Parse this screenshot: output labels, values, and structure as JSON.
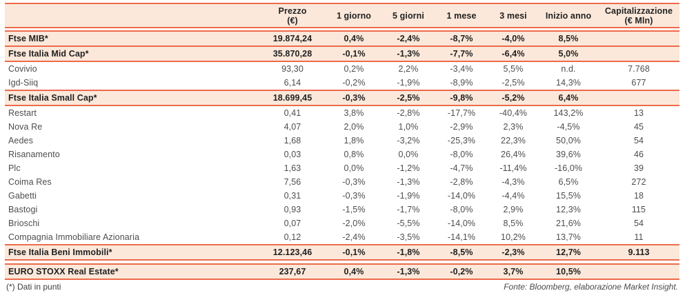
{
  "colors": {
    "accent_line": "#ed6a4b",
    "highlight_row_bg": "#fbe8da",
    "index_text": "#1f1f1f",
    "stock_text": "#4d4d4d"
  },
  "table": {
    "columns": [
      {
        "key": "name",
        "label_lines": []
      },
      {
        "key": "prezzo",
        "label_lines": [
          "Prezzo",
          "(€)"
        ]
      },
      {
        "key": "g1",
        "label_lines": [
          "1 giorno"
        ]
      },
      {
        "key": "g5",
        "label_lines": [
          "5 giorni"
        ]
      },
      {
        "key": "m1",
        "label_lines": [
          "1 mese"
        ]
      },
      {
        "key": "m3",
        "label_lines": [
          "3 mesi"
        ]
      },
      {
        "key": "ytd",
        "label_lines": [
          "Inizio anno"
        ]
      },
      {
        "key": "cap",
        "label_lines": [
          "Capitalizzazione",
          "(€ Mln)"
        ]
      }
    ],
    "rows": [
      {
        "type": "index",
        "name": "Ftse MIB*",
        "prezzo": "19.874,24",
        "g1": "0,4%",
        "g5": "-2,4%",
        "m1": "-8,7%",
        "m3": "-4,0%",
        "ytd": "8,5%",
        "cap": ""
      },
      {
        "type": "index",
        "name": "Ftse Italia Mid Cap*",
        "prezzo": "35.870,28",
        "g1": "-0,1%",
        "g5": "-1,3%",
        "m1": "-7,7%",
        "m3": "-6,4%",
        "ytd": "5,0%",
        "cap": ""
      },
      {
        "type": "stock",
        "name": "Covivio",
        "prezzo": "93,30",
        "g1": "0,2%",
        "g5": "2,2%",
        "m1": "-3,4%",
        "m3": "5,5%",
        "ytd": "n.d.",
        "cap": "7.768"
      },
      {
        "type": "stock",
        "name": "Igd-Siiq",
        "prezzo": "6,14",
        "g1": "-0,2%",
        "g5": "-1,9%",
        "m1": "-8,9%",
        "m3": "-2,5%",
        "ytd": "14,3%",
        "cap": "677"
      },
      {
        "type": "index",
        "name": "Ftse Italia Small Cap*",
        "prezzo": "18.699,45",
        "g1": "-0,3%",
        "g5": "-2,5%",
        "m1": "-9,8%",
        "m3": "-5,2%",
        "ytd": "6,4%",
        "cap": ""
      },
      {
        "type": "stock",
        "name": "Restart",
        "prezzo": "0,41",
        "g1": "3,8%",
        "g5": "-2,8%",
        "m1": "-17,7%",
        "m3": "-40,4%",
        "ytd": "143,2%",
        "cap": "13"
      },
      {
        "type": "stock",
        "name": "Nova Re",
        "prezzo": "4,07",
        "g1": "2,0%",
        "g5": "1,0%",
        "m1": "-2,9%",
        "m3": "2,3%",
        "ytd": "-4,5%",
        "cap": "45"
      },
      {
        "type": "stock",
        "name": "Aedes",
        "prezzo": "1,68",
        "g1": "1,8%",
        "g5": "-3,2%",
        "m1": "-25,3%",
        "m3": "22,3%",
        "ytd": "50,0%",
        "cap": "54"
      },
      {
        "type": "stock",
        "name": "Risanamento",
        "prezzo": "0,03",
        "g1": "0,8%",
        "g5": "0,0%",
        "m1": "-8,0%",
        "m3": "26,4%",
        "ytd": "39,6%",
        "cap": "46"
      },
      {
        "type": "stock",
        "name": "Plc",
        "prezzo": "1,63",
        "g1": "0,0%",
        "g5": "-1,2%",
        "m1": "-4,7%",
        "m3": "-11,4%",
        "ytd": "-16,0%",
        "cap": "39"
      },
      {
        "type": "stock",
        "name": "Coima Res",
        "prezzo": "7,56",
        "g1": "-0,3%",
        "g5": "-1,3%",
        "m1": "-2,8%",
        "m3": "-4,3%",
        "ytd": "6,5%",
        "cap": "272"
      },
      {
        "type": "stock",
        "name": "Gabetti",
        "prezzo": "0,31",
        "g1": "-0,3%",
        "g5": "-1,9%",
        "m1": "-14,0%",
        "m3": "-4,4%",
        "ytd": "15,5%",
        "cap": "18"
      },
      {
        "type": "stock",
        "name": "Bastogi",
        "prezzo": "0,93",
        "g1": "-1,5%",
        "g5": "-1,7%",
        "m1": "-8,0%",
        "m3": "2,9%",
        "ytd": "12,3%",
        "cap": "115"
      },
      {
        "type": "stock",
        "name": "Brioschi",
        "prezzo": "0,07",
        "g1": "-2,0%",
        "g5": "-5,5%",
        "m1": "-14,0%",
        "m3": "8,5%",
        "ytd": "21,6%",
        "cap": "54"
      },
      {
        "type": "stock",
        "name": "Compagnia Immobiliare Azionaria",
        "prezzo": "0,12",
        "g1": "-2,4%",
        "g5": "-3,5%",
        "m1": "-14,1%",
        "m3": "10,2%",
        "ytd": "13,7%",
        "cap": "11"
      },
      {
        "type": "index",
        "name": "Ftse Italia Beni Immobili*",
        "prezzo": "12.123,46",
        "g1": "-0,1%",
        "g5": "-1,8%",
        "m1": "-8,5%",
        "m3": "-2,3%",
        "ytd": "12,7%",
        "cap": "9.113"
      },
      {
        "type": "gap"
      },
      {
        "type": "index",
        "name": "EURO STOXX Real Estate*",
        "prezzo": "237,67",
        "g1": "0,4%",
        "g5": "-1,3%",
        "m1": "-0,2%",
        "m3": "3,7%",
        "ytd": "10,5%",
        "cap": ""
      }
    ]
  },
  "footer": {
    "note": "(*) Dati in punti",
    "source": "Fonte: Bloomberg, elaborazione Market Insight."
  }
}
